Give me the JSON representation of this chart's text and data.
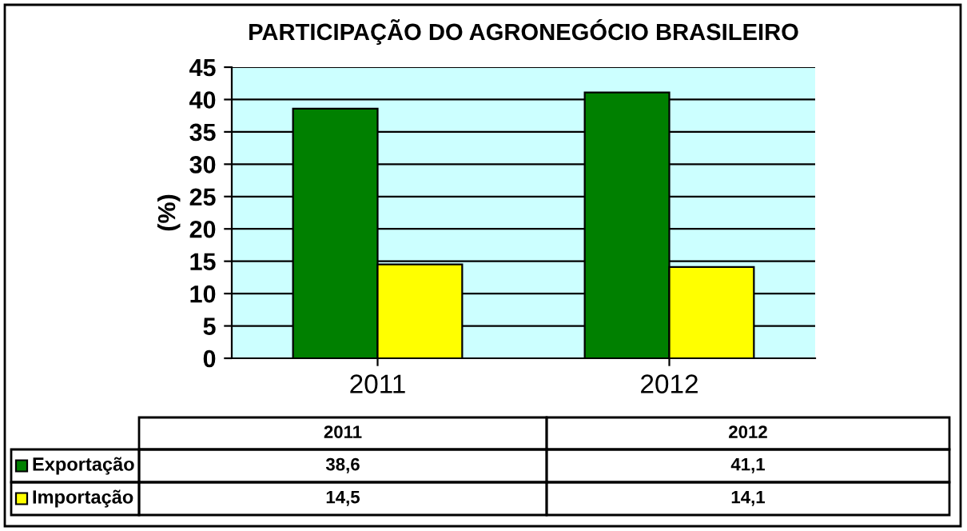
{
  "chart_data": {
    "type": "bar",
    "title": "PARTICIPAÇÃO DO AGRONEGÓCIO BRASILEIRO",
    "ylabel": "(%)",
    "categories": [
      "2011",
      "2012"
    ],
    "series": [
      {
        "name": "Exportação",
        "color": "#008000",
        "values": [
          38.6,
          41.1
        ],
        "value_labels": [
          "38,6",
          "41,1"
        ]
      },
      {
        "name": "Importação",
        "color": "#ffff00",
        "values": [
          14.5,
          14.1
        ],
        "value_labels": [
          "14,5",
          "14,1"
        ]
      }
    ],
    "ylim": [
      0,
      45
    ],
    "yticks": [
      0,
      5,
      10,
      15,
      20,
      25,
      30,
      35,
      40,
      45
    ],
    "grid": "y",
    "legend": "bottom"
  }
}
